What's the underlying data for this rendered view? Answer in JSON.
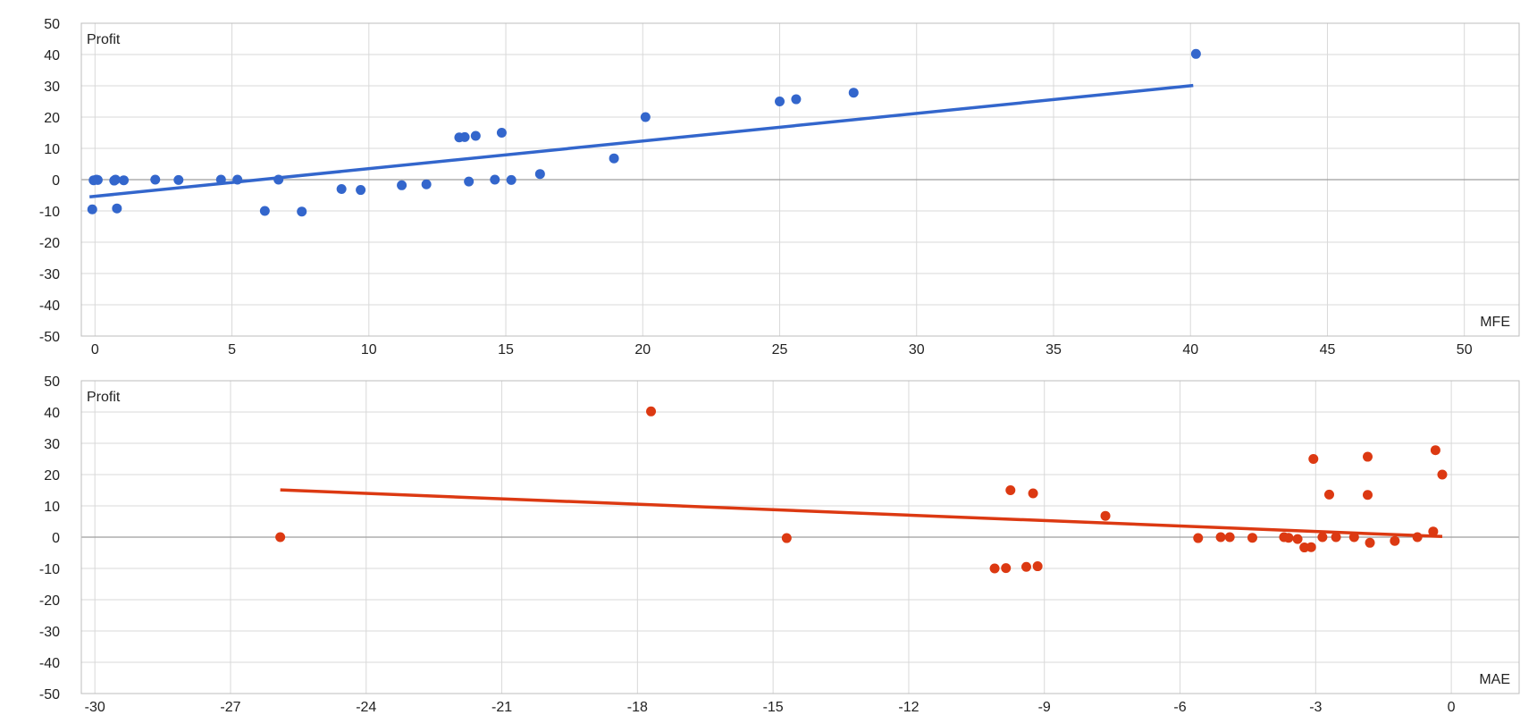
{
  "chart_data": [
    {
      "type": "scatter",
      "title": "",
      "xlabel": "MFE",
      "ylabel": "Profit",
      "xlim": [
        -0.5,
        52
      ],
      "ylim": [
        -50,
        50
      ],
      "xticks": [
        0,
        5,
        10,
        15,
        20,
        25,
        30,
        35,
        40,
        45,
        50
      ],
      "yticks": [
        50,
        40,
        30,
        20,
        10,
        0,
        -10,
        -20,
        -30,
        -40,
        -50
      ],
      "grid": true,
      "color": "#3366cc",
      "points": [
        {
          "x": -0.1,
          "y": -9.5
        },
        {
          "x": -0.05,
          "y": -0.2
        },
        {
          "x": 0.05,
          "y": 0
        },
        {
          "x": 0.1,
          "y": -0.1
        },
        {
          "x": 0.7,
          "y": -0.3
        },
        {
          "x": 0.75,
          "y": 0
        },
        {
          "x": 0.8,
          "y": -9.2
        },
        {
          "x": 1.05,
          "y": -0.2
        },
        {
          "x": 2.2,
          "y": 0
        },
        {
          "x": 3.05,
          "y": -0.1
        },
        {
          "x": 4.6,
          "y": 0
        },
        {
          "x": 5.2,
          "y": 0
        },
        {
          "x": 6.2,
          "y": -10
        },
        {
          "x": 6.7,
          "y": 0
        },
        {
          "x": 7.55,
          "y": -10.2
        },
        {
          "x": 9.0,
          "y": -3
        },
        {
          "x": 9.7,
          "y": -3.3
        },
        {
          "x": 11.2,
          "y": -1.8
        },
        {
          "x": 12.1,
          "y": -1.5
        },
        {
          "x": 13.3,
          "y": 13.5
        },
        {
          "x": 13.5,
          "y": 13.6
        },
        {
          "x": 13.65,
          "y": -0.6
        },
        {
          "x": 13.9,
          "y": 14
        },
        {
          "x": 14.6,
          "y": 0
        },
        {
          "x": 14.85,
          "y": 15
        },
        {
          "x": 15.2,
          "y": -0.1
        },
        {
          "x": 16.25,
          "y": 1.8
        },
        {
          "x": 18.95,
          "y": 6.8
        },
        {
          "x": 20.1,
          "y": 20
        },
        {
          "x": 25.0,
          "y": 25
        },
        {
          "x": 25.6,
          "y": 25.7
        },
        {
          "x": 27.7,
          "y": 27.8
        },
        {
          "x": 40.2,
          "y": 40.2
        }
      ],
      "trendline": {
        "x": [
          -0.2,
          40.1
        ],
        "y": [
          -5.5,
          30.1
        ]
      }
    },
    {
      "type": "scatter",
      "title": "",
      "xlabel": "MAE",
      "ylabel": "Profit",
      "xlim": [
        -30.3,
        1.5
      ],
      "ylim": [
        -50,
        50
      ],
      "xticks": [
        -30,
        -27,
        -24,
        -21,
        -18,
        -15,
        -12,
        -9,
        -6,
        -3,
        0
      ],
      "yticks": [
        50,
        40,
        30,
        20,
        10,
        0,
        -10,
        -20,
        -30,
        -40,
        -50
      ],
      "grid": true,
      "color": "#dc3912",
      "points": [
        {
          "x": -25.9,
          "y": 0
        },
        {
          "x": -17.7,
          "y": 40.2
        },
        {
          "x": -14.7,
          "y": -0.3
        },
        {
          "x": -10.1,
          "y": -10
        },
        {
          "x": -9.85,
          "y": -9.9
        },
        {
          "x": -9.75,
          "y": 15
        },
        {
          "x": -9.4,
          "y": -9.5
        },
        {
          "x": -9.25,
          "y": 14
        },
        {
          "x": -9.15,
          "y": -9.3
        },
        {
          "x": -7.65,
          "y": 6.8
        },
        {
          "x": -5.6,
          "y": -0.3
        },
        {
          "x": -5.1,
          "y": 0
        },
        {
          "x": -4.9,
          "y": 0
        },
        {
          "x": -4.4,
          "y": -0.2
        },
        {
          "x": -3.7,
          "y": 0
        },
        {
          "x": -3.6,
          "y": -0.2
        },
        {
          "x": -3.4,
          "y": -0.6
        },
        {
          "x": -3.25,
          "y": -3.3
        },
        {
          "x": -3.1,
          "y": -3.2
        },
        {
          "x": -3.05,
          "y": 25
        },
        {
          "x": -2.85,
          "y": 0
        },
        {
          "x": -2.7,
          "y": 13.6
        },
        {
          "x": -2.55,
          "y": 0
        },
        {
          "x": -2.15,
          "y": 0
        },
        {
          "x": -1.85,
          "y": 25.7
        },
        {
          "x": -1.85,
          "y": 13.5
        },
        {
          "x": -1.8,
          "y": -1.8
        },
        {
          "x": -1.25,
          "y": -1.2
        },
        {
          "x": -0.75,
          "y": 0
        },
        {
          "x": -0.4,
          "y": 1.8
        },
        {
          "x": -0.35,
          "y": 27.8
        },
        {
          "x": -0.2,
          "y": 20
        }
      ],
      "trendline": {
        "x": [
          -25.9,
          -0.2
        ],
        "y": [
          15.1,
          0.2
        ]
      }
    }
  ]
}
